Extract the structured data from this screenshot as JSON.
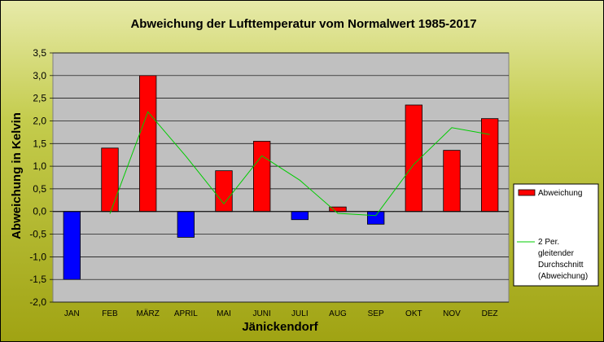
{
  "chart_data": {
    "type": "bar",
    "title": "Abweichung der Lufttemperatur vom Normalwert 1985-2017",
    "xlabel": "Jänickendorf",
    "ylabel": "Abweichung in Kelvin",
    "categories": [
      "JAN",
      "FEB",
      "MÄRZ",
      "APRIL",
      "MAI",
      "JUNI",
      "JULI",
      "AUG",
      "SEP",
      "OKT",
      "NOV",
      "DEZ"
    ],
    "ylim": [
      -2.0,
      3.5
    ],
    "yticks": [
      "3,5",
      "3,0",
      "2,5",
      "2,0",
      "1,5",
      "1,0",
      "0,5",
      "0,0",
      "-0,5",
      "-1,0",
      "-1,5",
      "-2,0"
    ],
    "grid": true,
    "legend_position": "right",
    "series": [
      {
        "name": "Abweichung",
        "type": "bar",
        "values": [
          -1.5,
          1.4,
          3.0,
          -0.57,
          0.9,
          1.55,
          -0.18,
          0.1,
          -0.28,
          2.35,
          1.35,
          2.05
        ],
        "color_positive": "#ff0000",
        "color_negative": "#0000ff"
      },
      {
        "name": "2 Per. gleitender Durchschnitt (Abweichung)",
        "name_lines": [
          "2 Per.",
          "gleitender",
          "Durchschnitt",
          "(Abweichung)"
        ],
        "type": "line",
        "start_index": 1,
        "values": [
          null,
          -0.05,
          2.2,
          1.22,
          0.17,
          1.23,
          0.69,
          -0.04,
          -0.09,
          1.04,
          1.85,
          1.7
        ],
        "color": "#00cc00"
      }
    ],
    "colors": {
      "plot_background": "#c0c0c0",
      "gridline": "#000000",
      "frame": "#808080"
    }
  }
}
